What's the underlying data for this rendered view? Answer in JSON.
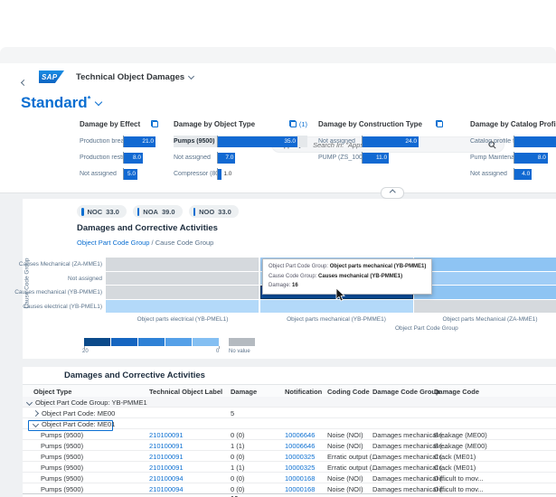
{
  "shell": {
    "logo_text": "SAP",
    "app_title": "Technical Object Damages",
    "search_scope": "Apps",
    "search_placeholder": "Search In: \"Apps\""
  },
  "variant": {
    "title": "Standard",
    "dirty_marker": "*"
  },
  "cards": [
    {
      "title": "Damage by Effect",
      "bars": [
        {
          "label": "Production brea...",
          "value": "21.0",
          "pct": 100,
          "inside": true
        },
        {
          "label": "Production restri...",
          "value": "8.0",
          "pct": 60,
          "inside": true
        },
        {
          "label": "Not assigned",
          "value": "5.0",
          "pct": 43,
          "inside": true
        }
      ]
    },
    {
      "title": "Damage by Object Type",
      "filter_count": "(1)",
      "bars": [
        {
          "label": "Pumps (9500)",
          "value": "35.0",
          "pct": 100,
          "inside": true,
          "selected": true
        },
        {
          "label": "Not assigned",
          "value": "7.0",
          "pct": 22,
          "inside": true
        },
        {
          "label": "Compressor (80...",
          "value": "1.0",
          "pct": 5,
          "inside": false
        }
      ]
    },
    {
      "title": "Damage by Construction Type",
      "bars": [
        {
          "label": "Not assigned",
          "value": "24.0",
          "pct": 100,
          "inside": true
        },
        {
          "label": "PUMP (ZS_100)",
          "value": "11.0",
          "pct": 47,
          "inside": true
        }
      ]
    },
    {
      "title": "Damage by Catalog Profile",
      "bars": [
        {
          "label": "Catalog profile f...",
          "value": "",
          "pct": 118,
          "inside": false
        },
        {
          "label": "Pump Maintena...",
          "value": "8.0",
          "pct": 71,
          "inside": true
        },
        {
          "label": "Not assigned",
          "value": "4.0",
          "pct": 37,
          "inside": true
        }
      ]
    }
  ],
  "chips": [
    {
      "label": "NOC",
      "value": "33.0"
    },
    {
      "label": "NOA",
      "value": "39.0"
    },
    {
      "label": "NOO",
      "value": "33.0"
    }
  ],
  "chart_section": {
    "title": "Damages and Corrective Activities",
    "drill_link": "Object Part Code Group",
    "drill_rest": " / Cause Code Group"
  },
  "heatmap": {
    "y_title": "Cause Code Group",
    "x_title": "Object Part Code Group",
    "row_labels": [
      "Causes Mechanical (ZA-MME1)",
      "Not assigned",
      "Causes mechanical (YB-PMME1)",
      "Causes electrical (YB-PMEL1)"
    ],
    "col_labels": [
      "Object parts electrical (YB-PMEL1)",
      "Object parts mechanical (YB-PMME1)",
      "Object parts Mechanical (ZA-MME1)"
    ],
    "cells": [
      [
        "none",
        "b2",
        "b3"
      ],
      [
        "none",
        "b1",
        "b2"
      ],
      [
        "none",
        "sel",
        "b3"
      ],
      [
        "b1",
        "b1",
        "none"
      ]
    ],
    "palette": {
      "none": "#d5d9dd",
      "b1": "#b3d9f9",
      "b2": "#a0cdf6",
      "b3": "#8ec4f3",
      "sel": "#0a4f9e"
    },
    "legend_colors": [
      "#0b4a8a",
      "#1565c0",
      "#2e81d6",
      "#55a0e8",
      "#84bff2"
    ],
    "legend": {
      "max": "20",
      "min": "0",
      "no_value": "No value",
      "no_value_color": "#b4bac0"
    }
  },
  "tooltip": {
    "l1": "Object Part Code Group: ",
    "v1": "Object parts mechanical (YB-PMME1)",
    "l2": "Cause Code Group: ",
    "v2": "Causes mechanical (YB-PMME1)",
    "l3": "Damage: ",
    "v3": "16"
  },
  "table": {
    "title": "Damages and Corrective Activities",
    "columns": [
      "Object Type",
      "Technical Object Label",
      "Damage",
      "Notification",
      "Coding Code",
      "Damage Code Group",
      "Damage Code"
    ],
    "group": {
      "label": "Object Part Code Group: YB-PMME1"
    },
    "subgroups": [
      {
        "label": "Object Part Code: ME00",
        "damage": "5"
      },
      {
        "label": "Object Part Code: ME01",
        "damage": ""
      }
    ],
    "rows": [
      [
        "Pumps (9500)",
        "210100091",
        "0 (0)",
        "10006646",
        "Noise (NOI)",
        "Damages mechanical (...",
        "Breakage (ME00)"
      ],
      [
        "Pumps (9500)",
        "210100091",
        "1 (1)",
        "10006646",
        "Noise (NOI)",
        "Damages mechanical (...",
        "Breakage (ME00)"
      ],
      [
        "Pumps (9500)",
        "210100091",
        "0 (0)",
        "10000325",
        "Erratic output (...",
        "Damages mechanical (...",
        "Crack (ME01)"
      ],
      [
        "Pumps (9500)",
        "210100091",
        "1 (1)",
        "10000325",
        "Erratic output (...",
        "Damages mechanical (...",
        "Crack (ME01)"
      ],
      [
        "Pumps (9500)",
        "210100094",
        "0 (0)",
        "10000168",
        "Noise (NOI)",
        "Damages mechanical (...",
        "Difficult to mov..."
      ],
      [
        "Pumps (9500)",
        "210100094",
        "0 (0)",
        "10000168",
        "Noise (NOI)",
        "Damages mechanical (...",
        "Difficult to mov..."
      ]
    ],
    "partial_total": "16"
  },
  "colors": {
    "accent": "#0a6ed1",
    "bar": "#1169d2",
    "link": "#0a6ed1"
  },
  "chart_data": [
    {
      "type": "bar",
      "orientation": "horizontal",
      "title": "Damage by Effect",
      "categories": [
        "Production brea...",
        "Production restri...",
        "Not assigned"
      ],
      "values": [
        21.0,
        8.0,
        5.0
      ]
    },
    {
      "type": "bar",
      "orientation": "horizontal",
      "title": "Damage by Object Type",
      "categories": [
        "Pumps (9500)",
        "Not assigned",
        "Compressor (80..."
      ],
      "values": [
        35.0,
        7.0,
        1.0
      ],
      "selected_category": "Pumps (9500)",
      "applied_filters": 1
    },
    {
      "type": "bar",
      "orientation": "horizontal",
      "title": "Damage by Construction Type",
      "categories": [
        "Not assigned",
        "PUMP (ZS_100)"
      ],
      "values": [
        24.0,
        11.0
      ]
    },
    {
      "type": "bar",
      "orientation": "horizontal",
      "title": "Damage by Catalog Profile",
      "categories": [
        "Catalog profile f...",
        "Pump Maintena...",
        "Not assigned"
      ],
      "values": [
        null,
        8.0,
        4.0
      ],
      "note": "first bar extends past the cropped right edge; its value is not visible"
    },
    {
      "type": "heatmap",
      "title": "Damages and Corrective Activities",
      "xlabel": "Object Part Code Group",
      "ylabel": "Cause Code Group",
      "x_categories": [
        "Object parts electrical (YB-PMEL1)",
        "Object parts mechanical (YB-PMME1)",
        "Object parts Mechanical (ZA-MME1)"
      ],
      "y_categories": [
        "Causes Mechanical (ZA-MME1)",
        "Not assigned",
        "Causes mechanical (YB-PMME1)",
        "Causes electrical (YB-PMEL1)"
      ],
      "scale": {
        "min": 0,
        "max": 20
      },
      "highlighted_cell": {
        "x": "Object parts mechanical (YB-PMME1)",
        "y": "Causes mechanical (YB-PMME1)",
        "damage": 16
      }
    }
  ]
}
